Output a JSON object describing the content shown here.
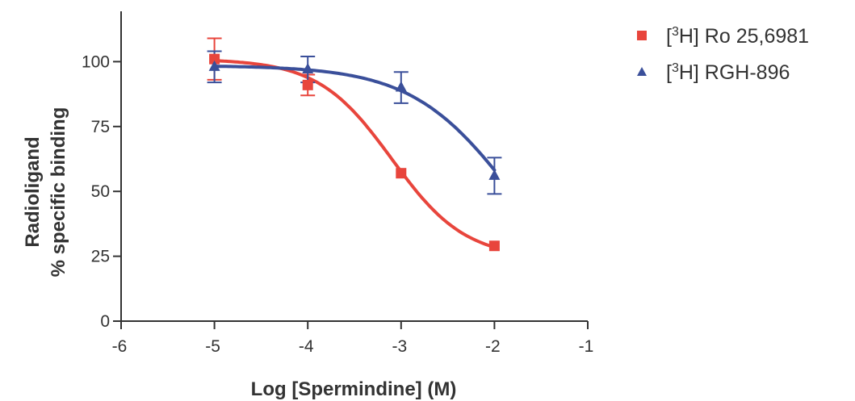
{
  "chart_data": {
    "type": "line",
    "xlabel": "Log [Spermindine] (M)",
    "ylabel_line1": "Radioligand",
    "ylabel_line2": "% specific binding",
    "xlim": [
      -6,
      -1
    ],
    "ylim": [
      0,
      120
    ],
    "x_ticks": [
      -6,
      -5,
      -4,
      -3,
      -2,
      -1
    ],
    "x_tick_labels": [
      "-6",
      "-5",
      "-4",
      "-3",
      "-2",
      "-1"
    ],
    "y_ticks": [
      0,
      25,
      50,
      75,
      100
    ],
    "y_tick_labels": [
      "0",
      "25",
      "50",
      "75",
      "100"
    ],
    "grid": false,
    "legend_position": "top-right",
    "series": [
      {
        "name_prefix": "[",
        "name_sup": "3",
        "name_suffix": "H] Ro 25,6981",
        "color": "#e8453c",
        "marker": "square",
        "x": [
          -5,
          -4,
          -3,
          -2
        ],
        "y": [
          101,
          91,
          57,
          29
        ],
        "err": [
          8,
          4,
          0,
          0
        ],
        "fit": {
          "top": 101,
          "bottom": 24,
          "log_ic50": -3.1,
          "hill": 1.1
        }
      },
      {
        "name_prefix": "[",
        "name_sup": "3",
        "name_suffix": "H] RGH-896",
        "color": "#3a4f9a",
        "marker": "triangle",
        "x": [
          -5,
          -4,
          -3,
          -2
        ],
        "y": [
          98,
          97,
          90,
          56
        ],
        "err": [
          6,
          5,
          6,
          7
        ],
        "fit": {
          "top": 98.5,
          "bottom": 0,
          "log_ic50": -1.8,
          "hill": 0.8
        }
      }
    ]
  }
}
